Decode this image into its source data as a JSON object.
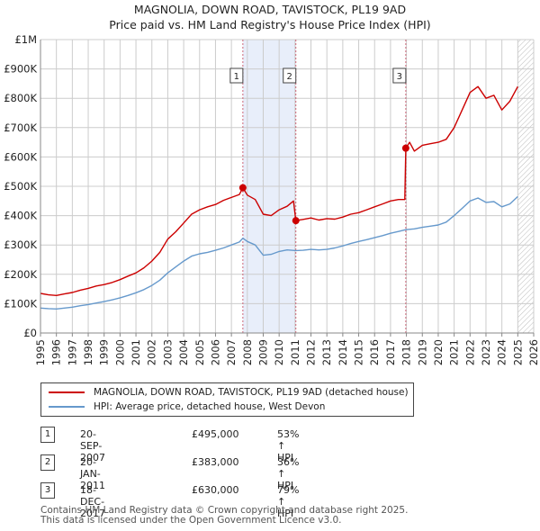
{
  "title": "MAGNOLIA, DOWN ROAD, TAVISTOCK, PL19 9AD",
  "subtitle": "Price paid vs. HM Land Registry's House Price Index (HPI)",
  "colors": {
    "property": "#cc0000",
    "hpi": "#6699cc",
    "shade": "#e8eefa",
    "grid": "#cccccc",
    "marker_line": "#cc6677"
  },
  "legend": {
    "property_label": "MAGNOLIA, DOWN ROAD, TAVISTOCK, PL19 9AD (detached house)",
    "hpi_label": "HPI: Average price, detached house, West Devon"
  },
  "transactions": [
    {
      "num": "1",
      "date": "20-SEP-2007",
      "price": "£495,000",
      "hpi": "53% ↑ HPI"
    },
    {
      "num": "2",
      "date": "20-JAN-2011",
      "price": "£383,000",
      "hpi": "36% ↑ HPI"
    },
    {
      "num": "3",
      "date": "18-DEC-2017",
      "price": "£630,000",
      "hpi": "79% ↑ HPI"
    }
  ],
  "footer": {
    "line1": "Contains HM Land Registry data © Crown copyright and database right 2025.",
    "line2": "This data is licensed under the Open Government Licence v3.0."
  },
  "chart_data": {
    "type": "line",
    "title": "MAGNOLIA, DOWN ROAD, TAVISTOCK, PL19 9AD",
    "subtitle": "Price paid vs. HM Land Registry's House Price Index (HPI)",
    "xlabel": "",
    "ylabel": "",
    "xlim": [
      1995,
      2026
    ],
    "ylim": [
      0,
      1000000
    ],
    "x_ticks": [
      "1995",
      "1996",
      "1997",
      "1998",
      "1999",
      "2000",
      "2001",
      "2002",
      "2003",
      "2004",
      "2005",
      "2006",
      "2007",
      "2008",
      "2009",
      "2010",
      "2011",
      "2012",
      "2013",
      "2014",
      "2015",
      "2016",
      "2017",
      "2018",
      "2019",
      "2020",
      "2021",
      "2022",
      "2023",
      "2024",
      "2025",
      "2026"
    ],
    "y_ticks": [
      {
        "value": 0,
        "label": "£0"
      },
      {
        "value": 100000,
        "label": "£100K"
      },
      {
        "value": 200000,
        "label": "£200K"
      },
      {
        "value": 300000,
        "label": "£300K"
      },
      {
        "value": 400000,
        "label": "£400K"
      },
      {
        "value": 500000,
        "label": "£500K"
      },
      {
        "value": 600000,
        "label": "£600K"
      },
      {
        "value": 700000,
        "label": "£700K"
      },
      {
        "value": 800000,
        "label": "£800K"
      },
      {
        "value": 900000,
        "label": "£900K"
      },
      {
        "value": 1000000,
        "label": "£1M"
      }
    ],
    "grid": true,
    "shaded_ranges": [
      [
        2007.72,
        2011.05
      ]
    ],
    "future_hatch_from": 2025.0,
    "sales": [
      {
        "label": "1",
        "x": 2007.72,
        "y": 495000
      },
      {
        "label": "2",
        "x": 2011.05,
        "y": 383000
      },
      {
        "label": "3",
        "x": 2017.96,
        "y": 630000
      }
    ],
    "series": [
      {
        "name": "MAGNOLIA, DOWN ROAD, TAVISTOCK, PL19 9AD (detached house)",
        "points": [
          [
            1995.0,
            135000
          ],
          [
            1995.5,
            130000
          ],
          [
            1996.0,
            128000
          ],
          [
            1996.5,
            133000
          ],
          [
            1997.0,
            138000
          ],
          [
            1997.5,
            146000
          ],
          [
            1998.0,
            152000
          ],
          [
            1998.5,
            160000
          ],
          [
            1999.0,
            165000
          ],
          [
            1999.5,
            172000
          ],
          [
            2000.0,
            182000
          ],
          [
            2000.5,
            194000
          ],
          [
            2001.0,
            205000
          ],
          [
            2001.5,
            222000
          ],
          [
            2002.0,
            245000
          ],
          [
            2002.5,
            275000
          ],
          [
            2003.0,
            320000
          ],
          [
            2003.5,
            345000
          ],
          [
            2004.0,
            375000
          ],
          [
            2004.5,
            405000
          ],
          [
            2005.0,
            420000
          ],
          [
            2005.5,
            430000
          ],
          [
            2006.0,
            438000
          ],
          [
            2006.5,
            452000
          ],
          [
            2007.0,
            462000
          ],
          [
            2007.5,
            472000
          ],
          [
            2007.72,
            495000
          ],
          [
            2008.0,
            470000
          ],
          [
            2008.5,
            455000
          ],
          [
            2009.0,
            405000
          ],
          [
            2009.5,
            400000
          ],
          [
            2010.0,
            420000
          ],
          [
            2010.5,
            432000
          ],
          [
            2010.9,
            450000
          ],
          [
            2011.05,
            383000
          ],
          [
            2011.5,
            387000
          ],
          [
            2012.0,
            392000
          ],
          [
            2012.5,
            385000
          ],
          [
            2013.0,
            390000
          ],
          [
            2013.5,
            388000
          ],
          [
            2014.0,
            395000
          ],
          [
            2014.5,
            405000
          ],
          [
            2015.0,
            410000
          ],
          [
            2015.5,
            420000
          ],
          [
            2016.0,
            430000
          ],
          [
            2016.5,
            440000
          ],
          [
            2017.0,
            450000
          ],
          [
            2017.5,
            455000
          ],
          [
            2017.9,
            455000
          ],
          [
            2017.96,
            630000
          ],
          [
            2018.2,
            650000
          ],
          [
            2018.5,
            620000
          ],
          [
            2019.0,
            640000
          ],
          [
            2019.5,
            645000
          ],
          [
            2020.0,
            650000
          ],
          [
            2020.5,
            660000
          ],
          [
            2021.0,
            700000
          ],
          [
            2021.5,
            760000
          ],
          [
            2022.0,
            820000
          ],
          [
            2022.5,
            840000
          ],
          [
            2023.0,
            800000
          ],
          [
            2023.5,
            810000
          ],
          [
            2024.0,
            760000
          ],
          [
            2024.5,
            790000
          ],
          [
            2025.0,
            840000
          ]
        ]
      },
      {
        "name": "HPI: Average price, detached house, West Devon",
        "points": [
          [
            1995.0,
            85000
          ],
          [
            1995.5,
            83000
          ],
          [
            1996.0,
            82000
          ],
          [
            1996.5,
            85000
          ],
          [
            1997.0,
            88000
          ],
          [
            1997.5,
            93000
          ],
          [
            1998.0,
            97000
          ],
          [
            1998.5,
            102000
          ],
          [
            1999.0,
            107000
          ],
          [
            1999.5,
            113000
          ],
          [
            2000.0,
            120000
          ],
          [
            2000.5,
            128000
          ],
          [
            2001.0,
            137000
          ],
          [
            2001.5,
            148000
          ],
          [
            2002.0,
            162000
          ],
          [
            2002.5,
            180000
          ],
          [
            2003.0,
            205000
          ],
          [
            2003.5,
            225000
          ],
          [
            2004.0,
            245000
          ],
          [
            2004.5,
            262000
          ],
          [
            2005.0,
            270000
          ],
          [
            2005.5,
            275000
          ],
          [
            2006.0,
            282000
          ],
          [
            2006.5,
            290000
          ],
          [
            2007.0,
            300000
          ],
          [
            2007.5,
            310000
          ],
          [
            2007.72,
            323000
          ],
          [
            2008.0,
            312000
          ],
          [
            2008.5,
            300000
          ],
          [
            2009.0,
            265000
          ],
          [
            2009.5,
            268000
          ],
          [
            2010.0,
            278000
          ],
          [
            2010.5,
            283000
          ],
          [
            2011.05,
            281000
          ],
          [
            2011.5,
            282000
          ],
          [
            2012.0,
            285000
          ],
          [
            2012.5,
            283000
          ],
          [
            2013.0,
            285000
          ],
          [
            2013.5,
            290000
          ],
          [
            2014.0,
            297000
          ],
          [
            2014.5,
            305000
          ],
          [
            2015.0,
            312000
          ],
          [
            2015.5,
            318000
          ],
          [
            2016.0,
            325000
          ],
          [
            2016.5,
            332000
          ],
          [
            2017.0,
            340000
          ],
          [
            2017.5,
            346000
          ],
          [
            2017.96,
            352000
          ],
          [
            2018.5,
            355000
          ],
          [
            2019.0,
            360000
          ],
          [
            2019.5,
            364000
          ],
          [
            2020.0,
            368000
          ],
          [
            2020.5,
            378000
          ],
          [
            2021.0,
            400000
          ],
          [
            2021.5,
            425000
          ],
          [
            2022.0,
            450000
          ],
          [
            2022.5,
            460000
          ],
          [
            2023.0,
            445000
          ],
          [
            2023.5,
            448000
          ],
          [
            2024.0,
            430000
          ],
          [
            2024.5,
            440000
          ],
          [
            2025.0,
            465000
          ]
        ]
      }
    ]
  }
}
